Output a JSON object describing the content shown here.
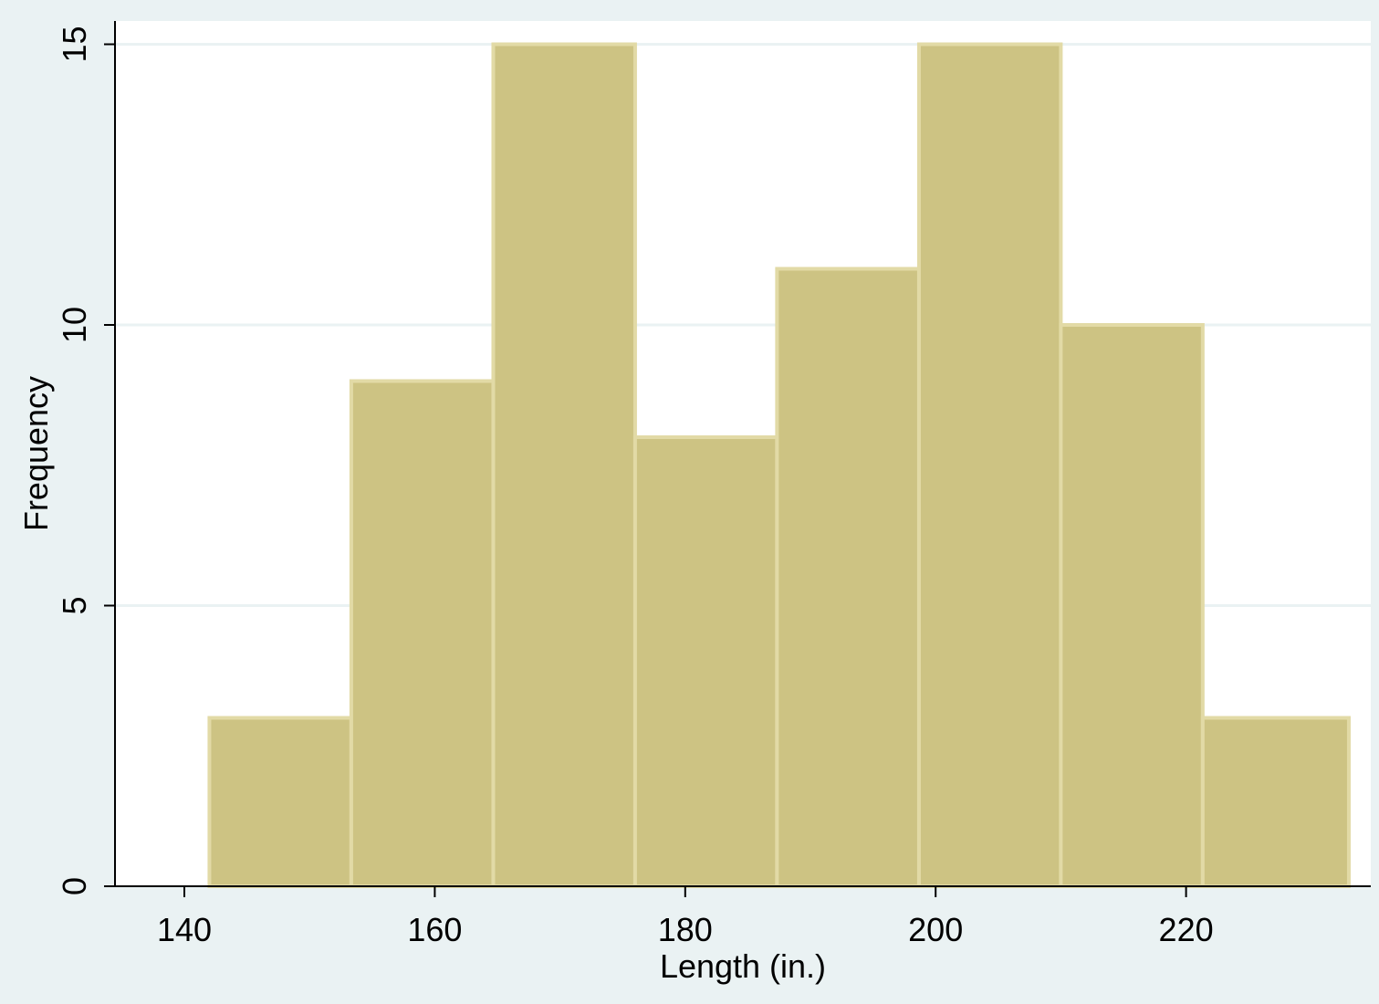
{
  "chart_data": {
    "type": "bar",
    "subtype": "histogram",
    "bins": [
      {
        "x0": 142,
        "x1": 153.33,
        "frequency": 3
      },
      {
        "x0": 153.33,
        "x1": 164.67,
        "frequency": 9
      },
      {
        "x0": 164.67,
        "x1": 176,
        "frequency": 15
      },
      {
        "x0": 176,
        "x1": 187.33,
        "frequency": 8
      },
      {
        "x0": 187.33,
        "x1": 198.67,
        "frequency": 11
      },
      {
        "x0": 198.67,
        "x1": 210,
        "frequency": 15
      },
      {
        "x0": 210,
        "x1": 221.33,
        "frequency": 10
      },
      {
        "x0": 221.33,
        "x1": 233,
        "frequency": 3
      }
    ],
    "xlabel": "Length (in.)",
    "ylabel": "Frequency",
    "xlim": [
      134.5,
      235
    ],
    "ylim": [
      0,
      15.4
    ],
    "xticks": [
      140,
      160,
      180,
      200,
      220
    ],
    "yticks": [
      0,
      5,
      10,
      15
    ],
    "grid": "horizontal",
    "colors": {
      "background": "#eaf2f3",
      "plot_area": "#ffffff",
      "bar_fill": "#cdc383",
      "bar_edge": "#e2daa6",
      "grid": "#eaf2f3",
      "axis": "#000000"
    }
  }
}
